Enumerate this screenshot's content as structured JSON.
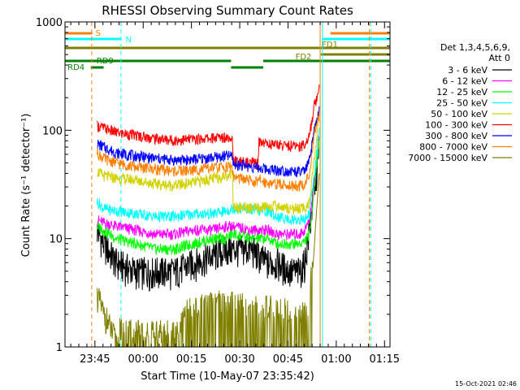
{
  "chart_data": {
    "type": "line",
    "title": "RHESSI Observing Summary Count Rates",
    "xlabel": "Start Time (10-May-07 23:35:42)",
    "ylabel": "Count Rate (s⁻¹ detector⁻¹)",
    "x_unit": "minutes since 23:35:42",
    "xlim": [
      0,
      101
    ],
    "ylim": [
      1,
      1000
    ],
    "y_scale": "log",
    "grid": false,
    "legend_position": "right",
    "x_ticks": [
      {
        "t": 9.3,
        "label": "23:45"
      },
      {
        "t": 24.3,
        "label": "00:00"
      },
      {
        "t": 39.3,
        "label": "00:15"
      },
      {
        "t": 54.3,
        "label": "00:30"
      },
      {
        "t": 69.3,
        "label": "00:45"
      },
      {
        "t": 84.3,
        "label": "01:00"
      },
      {
        "t": 99.3,
        "label": "01:15"
      }
    ],
    "y_ticks": [
      {
        "v": 1,
        "label": "1"
      },
      {
        "v": 10,
        "label": "10"
      },
      {
        "v": 100,
        "label": "100"
      },
      {
        "v": 1000,
        "label": "1000"
      }
    ],
    "legend_header": [
      "Det 1,3,4,5,6,9,",
      "Att 0"
    ],
    "series": [
      {
        "name": "3 - 6 keV",
        "color": "#000000",
        "x": [
          10,
          12,
          16,
          22,
          28,
          34,
          40,
          46,
          50,
          52,
          58,
          60,
          63,
          66,
          70,
          73,
          74.5,
          76,
          77.5,
          79
        ],
        "y": [
          12,
          9,
          6,
          5,
          5,
          5,
          6,
          7,
          8,
          8,
          8,
          7,
          6,
          6,
          5,
          5,
          6,
          12,
          30,
          60
        ]
      },
      {
        "name": "6 - 12 keV",
        "color": "#ff00ff",
        "x": [
          10,
          12,
          16,
          22,
          28,
          34,
          40,
          46,
          50,
          52,
          58,
          60,
          63,
          66,
          70,
          73,
          74.5,
          76,
          77.5,
          79
        ],
        "y": [
          15,
          14,
          13,
          12,
          11,
          11,
          12,
          12,
          13,
          13,
          12,
          12,
          12,
          11,
          11,
          11,
          12,
          15,
          35,
          90
        ]
      },
      {
        "name": "12 - 25 keV",
        "color": "#00ff00",
        "x": [
          10,
          12,
          16,
          22,
          28,
          34,
          40,
          46,
          50,
          52,
          58,
          60,
          63,
          66,
          70,
          73,
          74.5,
          76,
          77.5,
          79
        ],
        "y": [
          13,
          12,
          10,
          9,
          8,
          8,
          9,
          10,
          10,
          11,
          10,
          10,
          10,
          9,
          9,
          9,
          9.5,
          11,
          30,
          80
        ]
      },
      {
        "name": "25 - 50 keV",
        "color": "#00ffff",
        "x": [
          10,
          12,
          16,
          22,
          28,
          34,
          40,
          46,
          50,
          52,
          58,
          60,
          63,
          66,
          70,
          73,
          74.5,
          76,
          77.5,
          79
        ],
        "y": [
          22,
          19,
          18,
          17,
          16,
          16,
          17,
          17,
          18,
          19,
          19,
          18,
          18,
          16,
          15,
          15,
          15,
          17,
          40,
          100
        ]
      },
      {
        "name": "50 - 100 keV",
        "color": "#d2d200",
        "x": [
          10,
          12,
          16,
          22,
          28,
          34,
          40,
          46,
          50,
          52,
          52.3,
          58,
          60,
          63,
          66,
          70,
          73,
          74.5,
          76,
          77.5,
          79
        ],
        "y": [
          42,
          38,
          36,
          35,
          32,
          31,
          33,
          36,
          38,
          41,
          20,
          19,
          19,
          20,
          20,
          19,
          19,
          19,
          22,
          55,
          130
        ]
      },
      {
        "name": "100 - 300 keV",
        "color": "#ff0000",
        "x": [
          10,
          12,
          16,
          22,
          28,
          34,
          40,
          46,
          50,
          52,
          52.3,
          58,
          60,
          60.3,
          63,
          66,
          70,
          73,
          74.5,
          76,
          77.5,
          79
        ],
        "y": [
          110,
          105,
          95,
          90,
          84,
          81,
          83,
          85,
          87,
          88,
          52,
          50,
          49,
          80,
          75,
          74,
          72,
          72,
          74,
          90,
          170,
          250
        ]
      },
      {
        "name": "300 - 800 keV",
        "color": "#0000ff",
        "x": [
          10,
          12,
          16,
          22,
          28,
          34,
          40,
          46,
          50,
          52,
          52.3,
          58,
          60,
          60.3,
          63,
          66,
          70,
          73,
          74.5,
          76,
          77.5,
          79
        ],
        "y": [
          75,
          70,
          62,
          58,
          55,
          53,
          54,
          56,
          58,
          58,
          49,
          46,
          45,
          45,
          44,
          43,
          42,
          41,
          42,
          52,
          100,
          150
        ]
      },
      {
        "name": "800 - 7000 keV",
        "color": "#ff8000",
        "x": [
          10,
          12,
          16,
          22,
          28,
          34,
          40,
          46,
          50,
          52,
          52.3,
          58,
          60,
          60.3,
          63,
          66,
          70,
          73,
          74.5,
          76,
          77.5,
          79
        ],
        "y": [
          62,
          55,
          50,
          46,
          44,
          42,
          43,
          45,
          46,
          47,
          37,
          34,
          33,
          35,
          33,
          32,
          31,
          31,
          32,
          40,
          90,
          140
        ]
      },
      {
        "name": "7000 - 15000 keV",
        "color": "#808000",
        "x": [
          10,
          11,
          12,
          13,
          14,
          15,
          16,
          18,
          20,
          25,
          30,
          35,
          38,
          42,
          46,
          50,
          55,
          60,
          65,
          70,
          74,
          75,
          76,
          77,
          78,
          79
        ],
        "y": [
          3,
          2.5,
          2,
          1.8,
          1.5,
          1.3,
          1.1,
          1,
          1,
          1,
          1,
          1,
          1.6,
          1.7,
          1.8,
          1.9,
          1.8,
          1.7,
          1.7,
          1.6,
          1.5,
          1.4,
          2,
          5,
          15,
          40
        ]
      }
    ],
    "bars": [
      {
        "label": "S",
        "color": "#ff8000",
        "segments": [
          [
            0,
            8.5
          ],
          [
            82.5,
            101
          ]
        ]
      },
      {
        "label": "N",
        "color": "#00ffff",
        "segments": [
          [
            0,
            17.5
          ],
          [
            80,
            101
          ]
        ]
      },
      {
        "label": "FD1",
        "color": "#808000",
        "segments": [
          [
            0,
            101
          ]
        ]
      },
      {
        "label": "FD2",
        "color": "#808000",
        "segments": [
          [
            79.5,
            101
          ]
        ]
      },
      {
        "label": "RD9",
        "color": "#008000",
        "segments": [
          [
            0,
            51.6
          ],
          [
            61.6,
            101
          ]
        ]
      },
      {
        "label": "RD4",
        "color": "#008000",
        "segments": [
          [
            8,
            12
          ],
          [
            51.6,
            61.6
          ]
        ]
      }
    ],
    "vlines": [
      {
        "t": 8.3,
        "color": "#ff8000",
        "dash": true
      },
      {
        "t": 17.4,
        "color": "#00ffff",
        "dash": true
      },
      {
        "t": 79.3,
        "color": "#ff8000",
        "dash": false
      },
      {
        "t": 80.0,
        "color": "#00ffff",
        "dash": false
      },
      {
        "t": 94.6,
        "color": "#ff8000",
        "dash": true
      },
      {
        "t": 95.0,
        "color": "#00ffff",
        "dash": true
      }
    ]
  },
  "timestamp": "15-Oct-2021 02:46"
}
